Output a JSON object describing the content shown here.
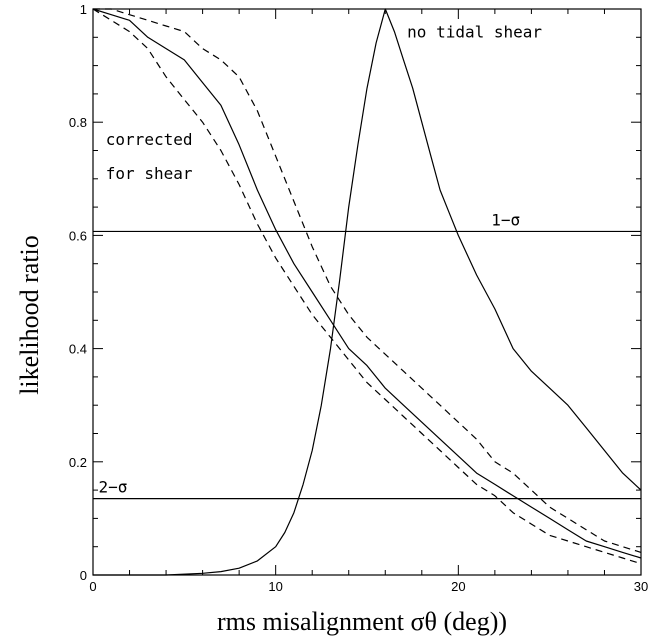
{
  "chart_data": {
    "type": "line",
    "xlabel": "rms misalignment σθ (deg))",
    "ylabel": "likelihood ratio",
    "xlim": [
      0,
      30
    ],
    "ylim": [
      0,
      1
    ],
    "x_ticks": [
      0,
      10,
      20,
      30
    ],
    "y_ticks": [
      0,
      0.2,
      0.4,
      0.6,
      0.8,
      1
    ],
    "x_tick_labels": [
      "0",
      "10",
      "20",
      "30"
    ],
    "y_tick_labels": [
      "0",
      "0.2",
      "0.4",
      "0.6",
      "0.8",
      "1"
    ],
    "grid": false,
    "legend": null,
    "reference_lines": [
      {
        "label": "1−σ",
        "y": 0.607
      },
      {
        "label": "2−σ",
        "y": 0.135
      }
    ],
    "annotations": [
      {
        "text": "no tidal shear",
        "x": 17.2,
        "y": 0.95
      },
      {
        "text": "corrected",
        "x": 0.7,
        "y": 0.76
      },
      {
        "text": "for shear",
        "x": 0.7,
        "y": 0.7
      }
    ],
    "series": [
      {
        "style": "solid",
        "x": [
          0,
          1,
          2,
          3,
          4,
          5,
          6,
          7,
          8,
          9,
          10,
          11,
          12,
          13,
          14,
          15,
          16,
          17,
          18,
          19,
          20,
          21,
          22,
          23,
          24,
          25,
          26,
          27,
          28,
          29,
          30
        ],
        "y": [
          1.0,
          0.99,
          0.98,
          0.95,
          0.93,
          0.91,
          0.87,
          0.83,
          0.76,
          0.68,
          0.61,
          0.55,
          0.5,
          0.45,
          0.4,
          0.37,
          0.33,
          0.3,
          0.27,
          0.24,
          0.21,
          0.18,
          0.16,
          0.14,
          0.12,
          0.1,
          0.08,
          0.06,
          0.05,
          0.04,
          0.03
        ]
      },
      {
        "style": "dashed",
        "x": [
          0,
          1,
          2,
          3,
          4,
          5,
          6,
          7,
          8,
          9,
          10,
          11,
          12,
          13,
          14,
          15,
          16,
          17,
          18,
          19,
          20,
          21,
          22,
          23,
          24,
          25,
          26,
          27,
          28,
          29,
          30
        ],
        "y": [
          1.0,
          1.0,
          0.99,
          0.98,
          0.97,
          0.96,
          0.93,
          0.91,
          0.88,
          0.82,
          0.74,
          0.66,
          0.58,
          0.51,
          0.46,
          0.42,
          0.39,
          0.36,
          0.33,
          0.3,
          0.27,
          0.24,
          0.2,
          0.18,
          0.15,
          0.12,
          0.1,
          0.08,
          0.06,
          0.05,
          0.04
        ]
      },
      {
        "style": "dashed",
        "x": [
          0,
          1,
          2,
          3,
          4,
          5,
          6,
          7,
          8,
          9,
          10,
          11,
          12,
          13,
          14,
          15,
          16,
          17,
          18,
          19,
          20,
          21,
          22,
          23,
          24,
          25,
          26,
          27,
          28,
          29,
          30
        ],
        "y": [
          1.0,
          0.98,
          0.96,
          0.93,
          0.88,
          0.84,
          0.8,
          0.75,
          0.69,
          0.62,
          0.56,
          0.51,
          0.46,
          0.42,
          0.38,
          0.34,
          0.31,
          0.28,
          0.25,
          0.22,
          0.19,
          0.16,
          0.14,
          0.11,
          0.09,
          0.07,
          0.06,
          0.05,
          0.04,
          0.03,
          0.02
        ]
      },
      {
        "style": "solid",
        "x": [
          0,
          2,
          4,
          6,
          7,
          8,
          9,
          10,
          10.5,
          11,
          11.5,
          12,
          12.5,
          13,
          13.5,
          14,
          14.5,
          15,
          15.5,
          16,
          16.5,
          17,
          17.5,
          18,
          18.5,
          19,
          19.5,
          20,
          21,
          22,
          23,
          24,
          25,
          26,
          27,
          28,
          29,
          30
        ],
        "y": [
          0,
          0,
          0,
          0.003,
          0.006,
          0.012,
          0.025,
          0.05,
          0.075,
          0.11,
          0.16,
          0.22,
          0.3,
          0.4,
          0.52,
          0.65,
          0.76,
          0.86,
          0.94,
          1.0,
          0.96,
          0.91,
          0.86,
          0.8,
          0.74,
          0.68,
          0.64,
          0.6,
          0.53,
          0.47,
          0.4,
          0.36,
          0.33,
          0.3,
          0.26,
          0.22,
          0.18,
          0.15
        ]
      }
    ]
  }
}
